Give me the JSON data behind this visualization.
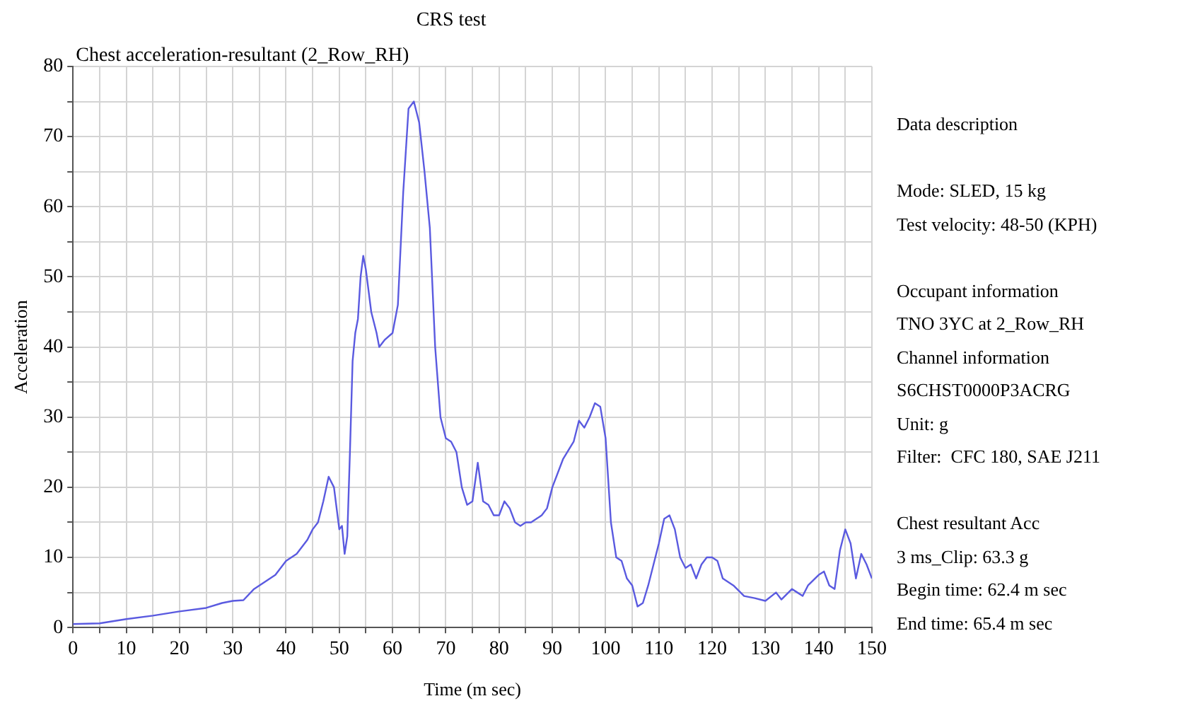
{
  "chart_data": {
    "type": "line",
    "title": "CRS test",
    "subtitle": "Chest acceleration-resultant (2_Row_RH)",
    "xlabel": "Time (m sec)",
    "ylabel": "Acceleration",
    "x": [
      0,
      5,
      10,
      15,
      20,
      25,
      28,
      30,
      32,
      34,
      36,
      38,
      40,
      42,
      44,
      45,
      46,
      47,
      48,
      49,
      50,
      50.5,
      51,
      51.5,
      52,
      52.5,
      53,
      53.5,
      54,
      54.5,
      55,
      56,
      57,
      57.5,
      58.5,
      60,
      61,
      62,
      63,
      64,
      65,
      66,
      67,
      68,
      69,
      70,
      71,
      72,
      73,
      74,
      75,
      76,
      77,
      78,
      79,
      80,
      81,
      82,
      83,
      84,
      85,
      86,
      87,
      88,
      89,
      90,
      92,
      94,
      95,
      96,
      97,
      98,
      99,
      100,
      101,
      102,
      103,
      104,
      105,
      106,
      107,
      108,
      110,
      111,
      112,
      113,
      114,
      115,
      116,
      117,
      118,
      119,
      120,
      121,
      122,
      124,
      126,
      128,
      130,
      132,
      133,
      135,
      136,
      137,
      138,
      140,
      141,
      142,
      143,
      144,
      145,
      146,
      147,
      148,
      149,
      150
    ],
    "series": [
      {
        "color": "#5a5ae0",
        "values": [
          0.5,
          0.6,
          1.2,
          1.7,
          2.3,
          2.8,
          3.5,
          3.8,
          3.9,
          5.5,
          6.5,
          7.5,
          9.5,
          10.5,
          12.5,
          14,
          15,
          18,
          21.5,
          20,
          14,
          14.5,
          10.5,
          13,
          25,
          38,
          42,
          44,
          50,
          53,
          51,
          45,
          42,
          40,
          41,
          42,
          46,
          62,
          74,
          75,
          72,
          65,
          57,
          40,
          30,
          27,
          26.5,
          25,
          20,
          17.5,
          18,
          23.5,
          18,
          17.5,
          16,
          16,
          18,
          17,
          15,
          14.5,
          15,
          15,
          15.5,
          16,
          17,
          20,
          24,
          26.5,
          29.5,
          28.5,
          30,
          32,
          31.5,
          27,
          15,
          10,
          9.5,
          7,
          6,
          3,
          3.5,
          6,
          12,
          15.5,
          16,
          14,
          10,
          8.5,
          9,
          7,
          9,
          10,
          10,
          9.5,
          7,
          6,
          4.5,
          4.2,
          3.8,
          5,
          4,
          5.5,
          5,
          4.5,
          6,
          7.5,
          8,
          6,
          5.5,
          11,
          14,
          12,
          7,
          10.5,
          9,
          7
        ]
      }
    ],
    "xlim": [
      0,
      150
    ],
    "ylim": [
      0,
      80
    ],
    "xticks": [
      0,
      {
        "value": 5,
        "label": null
      },
      10,
      {
        "value": 15,
        "label": null
      },
      20,
      {
        "value": 25,
        "label": null
      },
      30,
      {
        "value": 35,
        "label": null
      },
      40,
      {
        "value": 45,
        "label": null
      },
      50,
      {
        "value": 55,
        "label": null
      },
      60,
      {
        "value": 65,
        "label": null
      },
      70,
      {
        "value": 75,
        "label": null
      },
      80,
      {
        "value": 85,
        "label": null
      },
      90,
      {
        "value": 95,
        "label": null
      },
      100,
      {
        "value": 105,
        "label": null
      },
      110,
      {
        "value": 115,
        "label": null
      },
      120,
      {
        "value": 125,
        "label": null
      },
      130,
      {
        "value": 135,
        "label": null
      },
      140,
      {
        "value": 145,
        "label": null
      },
      150
    ],
    "yticks": [
      0,
      {
        "value": 5,
        "label": null
      },
      10,
      {
        "value": 15,
        "label": null
      },
      20,
      {
        "value": 25,
        "label": null
      },
      30,
      {
        "value": 35,
        "label": null
      },
      40,
      {
        "value": 45,
        "label": null
      },
      50,
      {
        "value": 55,
        "label": null
      },
      60,
      {
        "value": 65,
        "label": null
      },
      70,
      {
        "value": 75,
        "label": null
      },
      80
    ],
    "grid": true,
    "legend": false,
    "marker": "none",
    "line_style": "solid",
    "annotations": [
      "Data description",
      "Mode: SLED, 15 kg\nTest velocity: 48-50 (KPH)",
      "Occupant information\nTNO 3YC at 2_Row_RH\nChannel information\nS6CHST0000P3ACRG\nUnit: g\nFilter:  CFC 180, SAE J211",
      "Chest resultant Acc\n3 ms_Clip: 63.3 g\nBegin time: 62.4 m sec\nEnd time: 65.4 m sec"
    ]
  }
}
